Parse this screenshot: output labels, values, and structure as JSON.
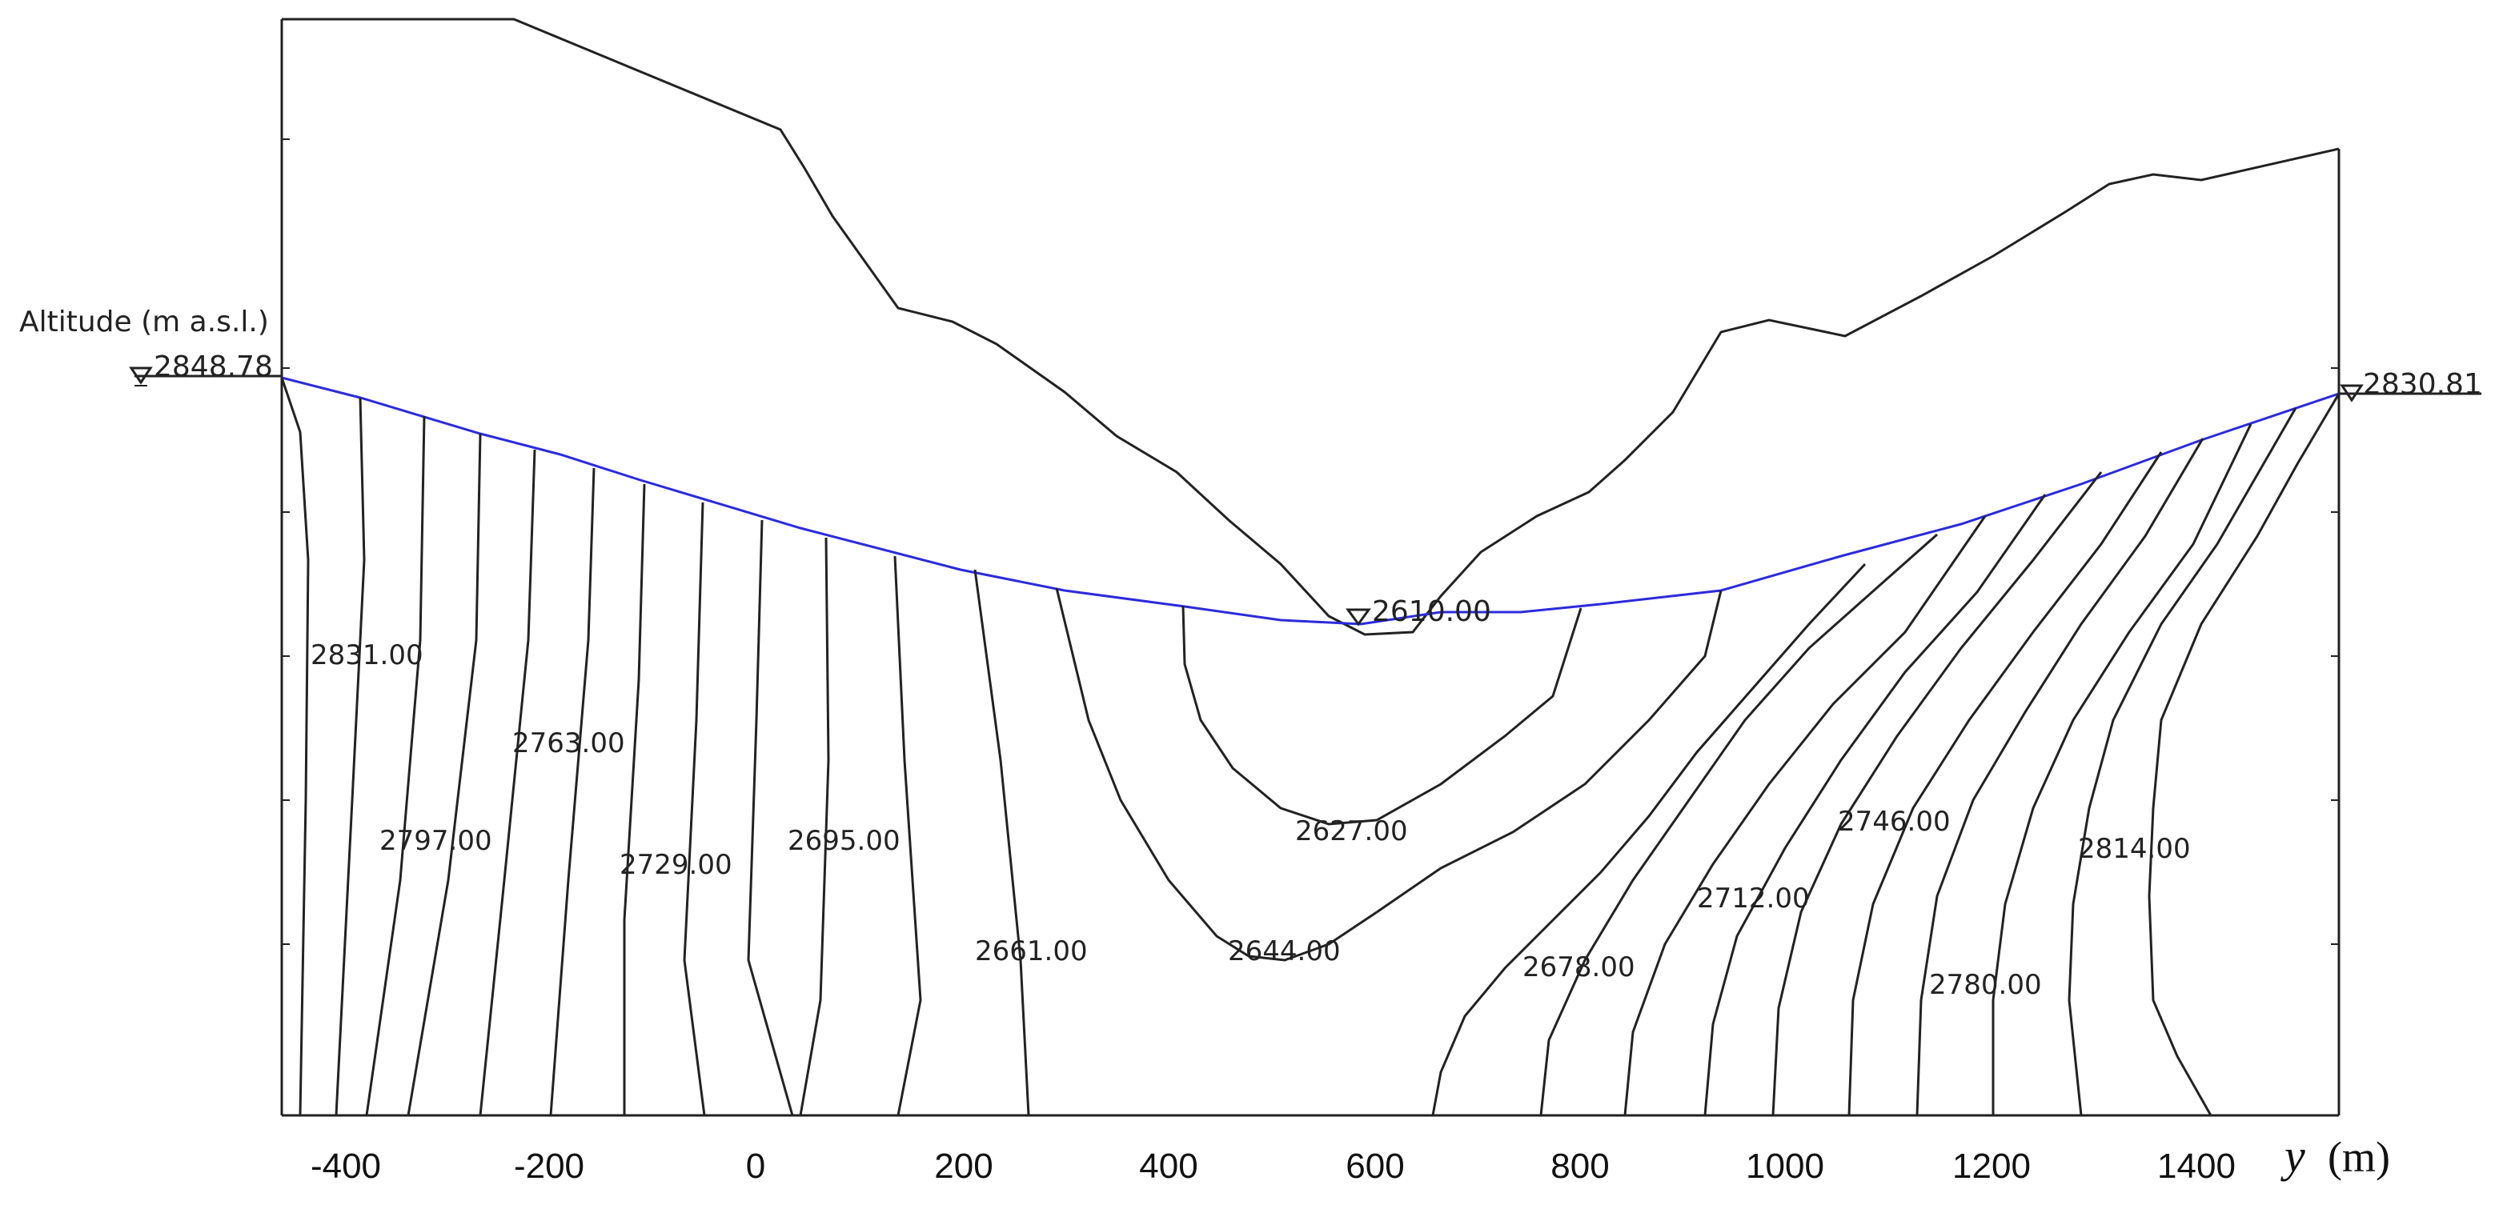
{
  "colors": {
    "water_table": "#2b2bdc",
    "lines": "#222222"
  },
  "labels": {
    "altitude": "Altitude (m a.s.l.)",
    "left_level": "2848.78",
    "right_level": "2830.81",
    "bottom_level": "2610.00",
    "x_axis_var": "y",
    "x_axis_unit": "(m)"
  },
  "x_ticks": [
    "-400",
    "-200",
    "0",
    "200",
    "400",
    "600",
    "800",
    "1000",
    "1200",
    "1400"
  ],
  "contours": [
    "2831.00",
    "2763.00",
    "2797.00",
    "2729.00",
    "2695.00",
    "2661.00",
    "2644.00",
    "2627.00",
    "2678.00",
    "2712.00",
    "2746.00",
    "2780.00",
    "2814.00"
  ]
}
